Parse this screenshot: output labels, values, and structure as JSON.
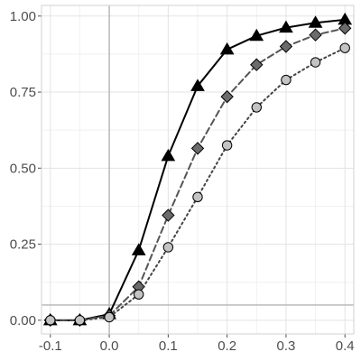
{
  "chart_data": {
    "type": "line",
    "title": "",
    "xlabel": "",
    "ylabel": "",
    "x": [
      -0.1,
      -0.05,
      0.0,
      0.05,
      0.1,
      0.15,
      0.2,
      0.25,
      0.3,
      0.35,
      0.4
    ],
    "xlim": [
      -0.115,
      0.415
    ],
    "ylim": [
      -0.045,
      1.035
    ],
    "x_ticks": [
      {
        "value": -0.1,
        "label": "-0.1"
      },
      {
        "value": 0.0,
        "label": "0.0"
      },
      {
        "value": 0.1,
        "label": "0.1"
      },
      {
        "value": 0.2,
        "label": "0.2"
      },
      {
        "value": 0.3,
        "label": "0.3"
      },
      {
        "value": 0.4,
        "label": "0.4"
      }
    ],
    "y_ticks": [
      {
        "value": 0.0,
        "label": "0.00"
      },
      {
        "value": 0.25,
        "label": "0.25"
      },
      {
        "value": 0.5,
        "label": "0.50"
      },
      {
        "value": 0.75,
        "label": "0.75"
      },
      {
        "value": 1.0,
        "label": "1.00"
      }
    ],
    "reference_lines": {
      "vertical_x": 0.0,
      "horizontal_y": 0.05
    },
    "grid": true,
    "legend": "none",
    "series": [
      {
        "marker": "triangle",
        "line_style": "solid",
        "line_color": "#000000",
        "marker_fill": "#000000",
        "values": [
          0.0,
          0.0,
          0.02,
          0.23,
          0.54,
          0.77,
          0.89,
          0.935,
          0.962,
          0.978,
          0.988
        ]
      },
      {
        "marker": "diamond",
        "line_style": "dashed",
        "line_color": "#555555",
        "marker_fill": "#6b6b6b",
        "values": [
          0.0,
          0.0,
          0.015,
          0.11,
          0.345,
          0.565,
          0.735,
          0.84,
          0.9,
          0.938,
          0.96
        ]
      },
      {
        "marker": "circle",
        "line_style": "dotted",
        "line_color": "#444444",
        "marker_fill": "#c3c3c3",
        "values": [
          0.0,
          0.0,
          0.01,
          0.085,
          0.24,
          0.405,
          0.575,
          0.7,
          0.79,
          0.848,
          0.895
        ]
      }
    ],
    "colors": {
      "grid_major": "#e3e3e3",
      "grid_minor": "#f1f1f1",
      "reference": "#b5b5b5",
      "panel_border": "#d0d0d0",
      "tick_text": "#4d4d4d"
    }
  }
}
